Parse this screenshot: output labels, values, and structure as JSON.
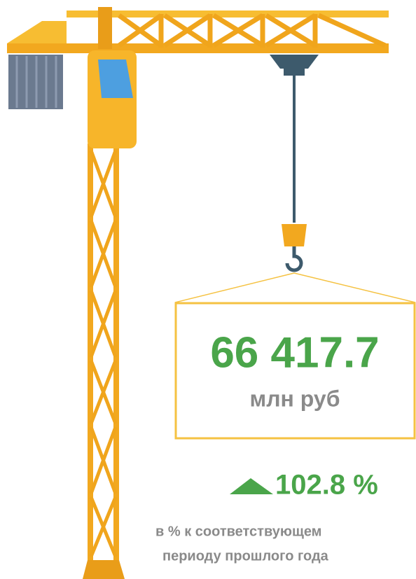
{
  "figure": {
    "amount": "66 417.7",
    "unit": "млн руб"
  },
  "change": {
    "value": "102.8 %",
    "note": [
      "в % к соответствующем",
      "периоду прошлого года"
    ]
  }
}
